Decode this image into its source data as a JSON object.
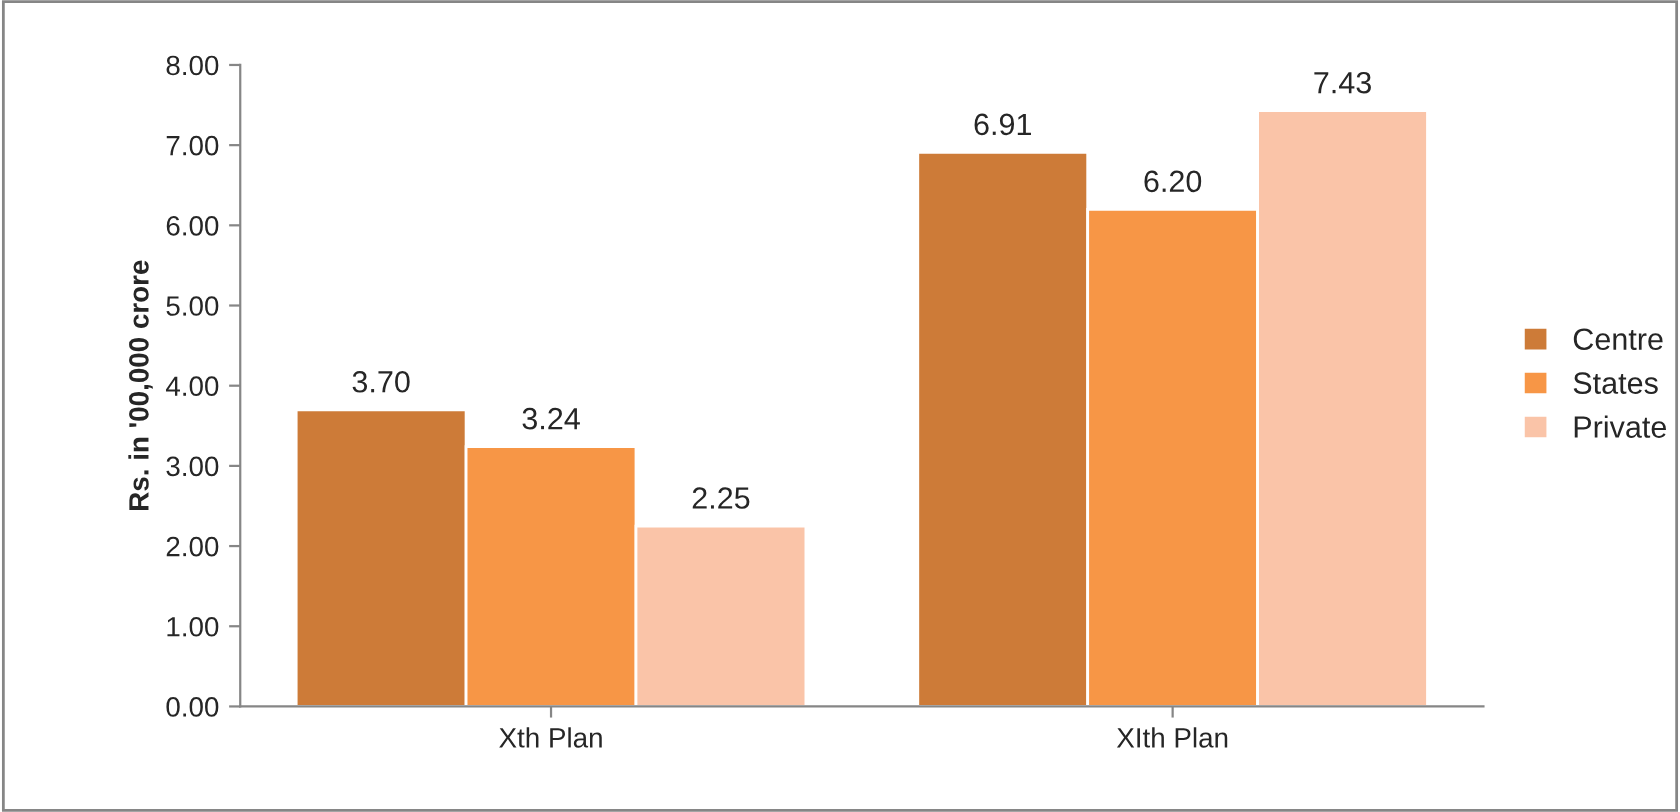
{
  "chart_data": {
    "type": "bar",
    "ylabel": "Rs. in '00,000 crore",
    "categories": [
      "Xth Plan",
      "XIth Plan"
    ],
    "series": [
      {
        "name": "Centre",
        "color": "#cd7b38",
        "values": [
          3.7,
          6.91
        ],
        "value_labels": [
          "3.70",
          "6.91"
        ]
      },
      {
        "name": "States",
        "color": "#f79646",
        "values": [
          3.24,
          6.2
        ],
        "value_labels": [
          "3.24",
          "6.20"
        ]
      },
      {
        "name": "Private",
        "color": "#fac4a8",
        "values": [
          2.25,
          7.43
        ],
        "value_labels": [
          "2.25",
          "7.43"
        ]
      }
    ],
    "ylim": [
      0,
      8
    ],
    "yticks": [
      {
        "value": 0,
        "label": "0.00"
      },
      {
        "value": 1,
        "label": "1.00"
      },
      {
        "value": 2,
        "label": "2.00"
      },
      {
        "value": 3,
        "label": "3.00"
      },
      {
        "value": 4,
        "label": "4.00"
      },
      {
        "value": 5,
        "label": "5.00"
      },
      {
        "value": 6,
        "label": "6.00"
      },
      {
        "value": 7,
        "label": "7.00"
      },
      {
        "value": 8,
        "label": "8.00"
      }
    ],
    "grid": false,
    "legend": "right"
  }
}
